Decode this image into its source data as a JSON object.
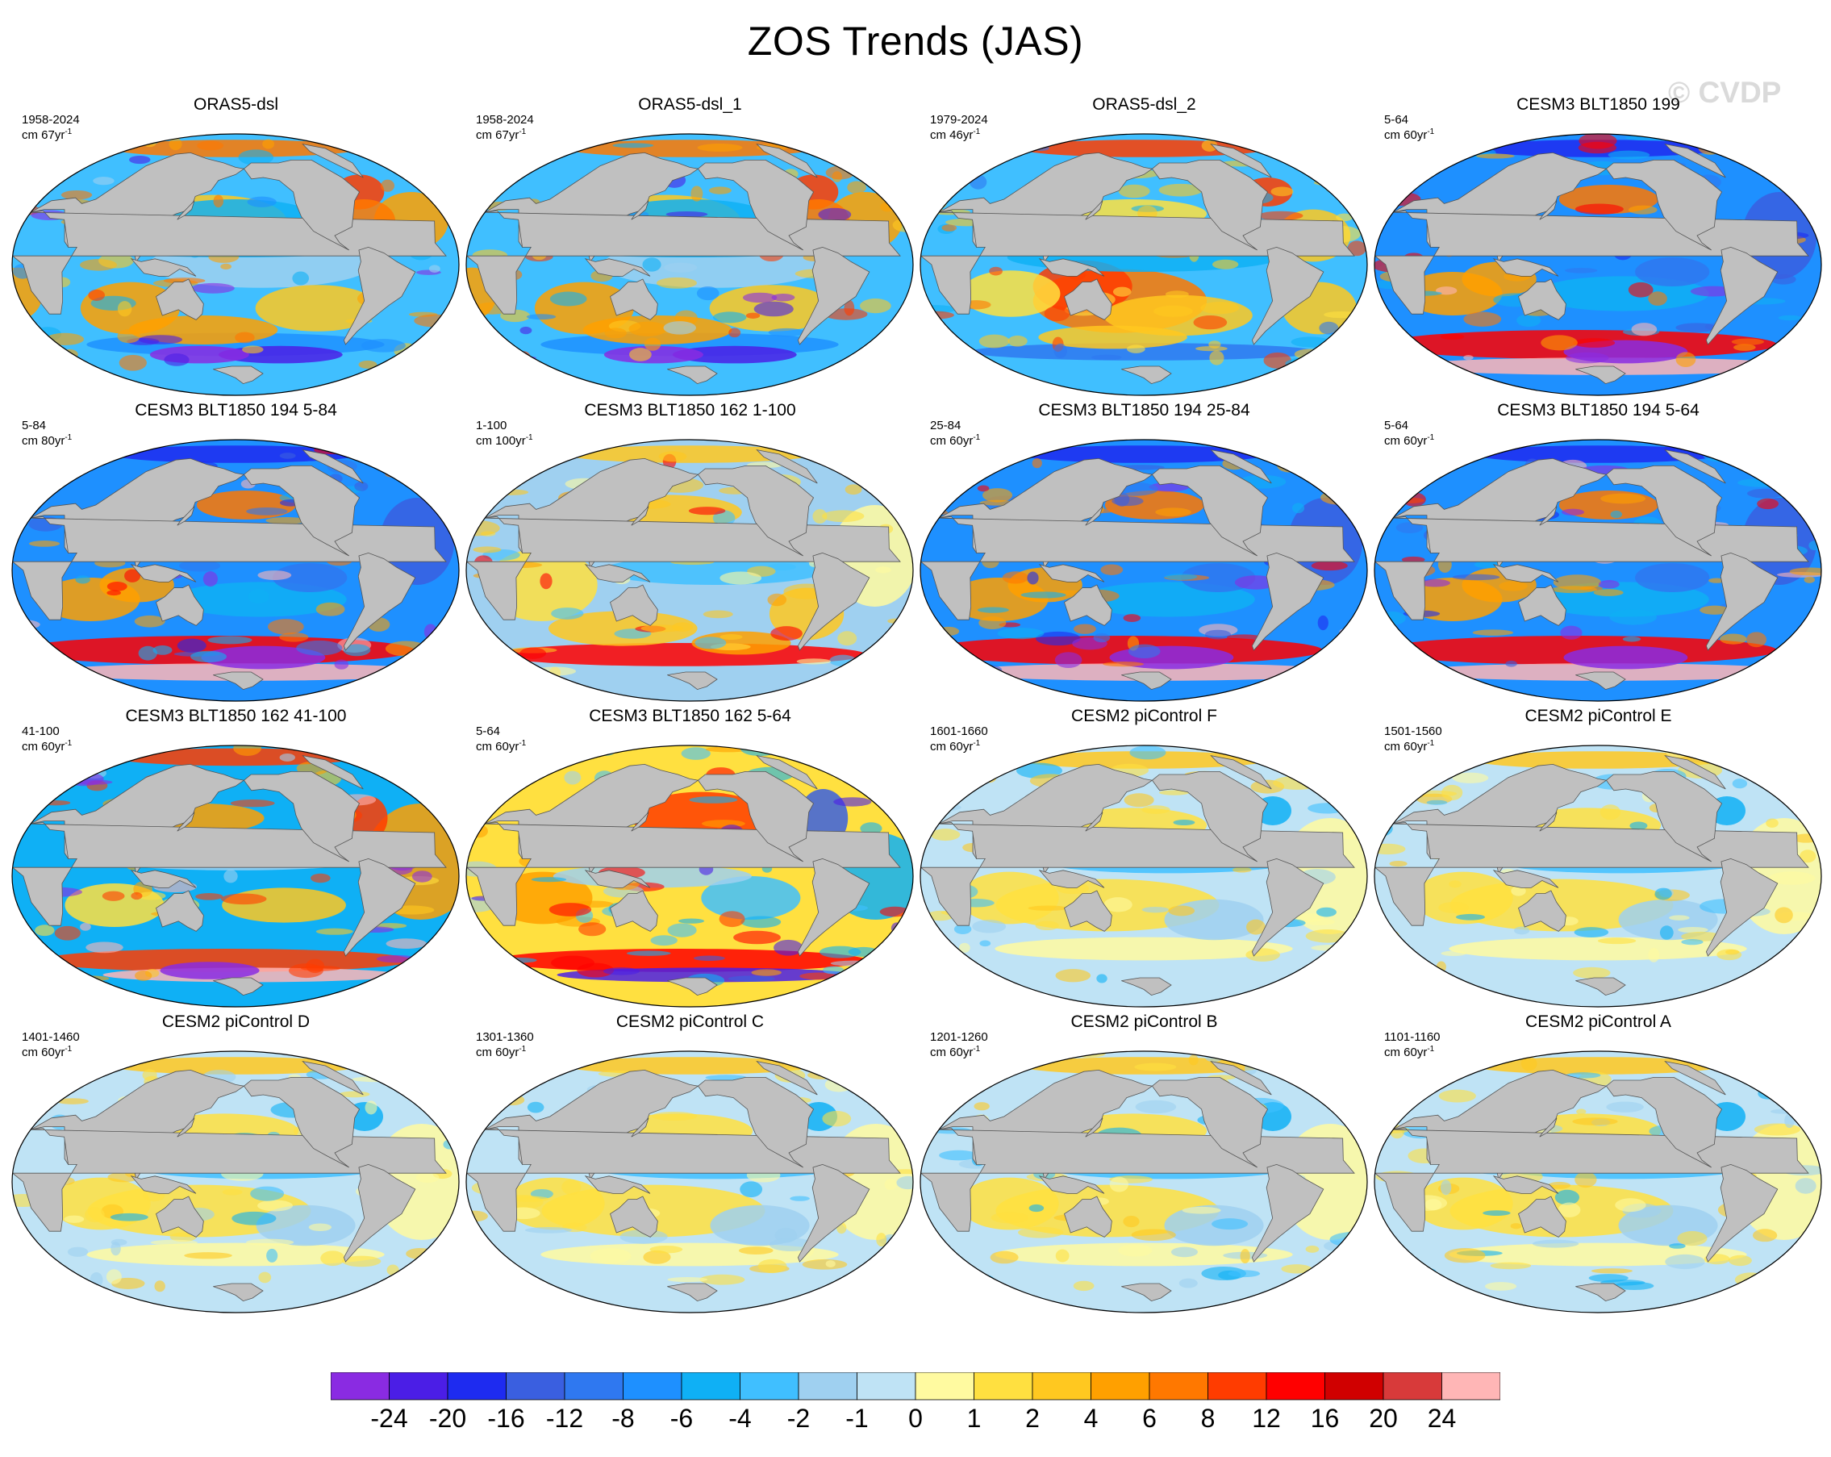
{
  "title": "ZOS Trends (JAS)",
  "watermark": "© CVDP",
  "panels": [
    {
      "title": "ORAS5-dsl",
      "years": "1958-2024",
      "units": "cm 67yr",
      "exp": "-1",
      "pattern": "obs1"
    },
    {
      "title": "ORAS5-dsl_1",
      "years": "1958-2024",
      "units": "cm 67yr",
      "exp": "-1",
      "pattern": "obs1"
    },
    {
      "title": "ORAS5-dsl_2",
      "years": "1979-2024",
      "units": "cm 46yr",
      "exp": "-1",
      "pattern": "obs2"
    },
    {
      "title": "CESM3 BLT1850 199",
      "years": "5-64",
      "units": "cm 60yr",
      "exp": "-1",
      "pattern": "cesm3cool"
    },
    {
      "title": "CESM3 BLT1850 194 5-84",
      "years": "5-84",
      "units": "cm 80yr",
      "exp": "-1",
      "pattern": "cesm3cool"
    },
    {
      "title": "CESM3 BLT1850 162 1-100",
      "years": "1-100",
      "units": "cm 100yr",
      "exp": "-1",
      "pattern": "cesm3mixed"
    },
    {
      "title": "CESM3 BLT1850 194 25-84",
      "years": "25-84",
      "units": "cm 60yr",
      "exp": "-1",
      "pattern": "cesm3cool"
    },
    {
      "title": "CESM3 BLT1850 194 5-64",
      "years": "5-64",
      "units": "cm 60yr",
      "exp": "-1",
      "pattern": "cesm3cool"
    },
    {
      "title": "CESM3 BLT1850 162 41-100",
      "years": "41-100",
      "units": "cm 60yr",
      "exp": "-1",
      "pattern": "cesm3warmatl"
    },
    {
      "title": "CESM3 BLT1850 162 5-64",
      "years": "5-64",
      "units": "cm 60yr",
      "exp": "-1",
      "pattern": "cesm3warmpac"
    },
    {
      "title": "CESM2 piControl F",
      "years": "1601-1660",
      "units": "cm 60yr",
      "exp": "-1",
      "pattern": "weak"
    },
    {
      "title": "CESM2 piControl E",
      "years": "1501-1560",
      "units": "cm 60yr",
      "exp": "-1",
      "pattern": "weak"
    },
    {
      "title": "CESM2 piControl D",
      "years": "1401-1460",
      "units": "cm 60yr",
      "exp": "-1",
      "pattern": "weak"
    },
    {
      "title": "CESM2 piControl C",
      "years": "1301-1360",
      "units": "cm 60yr",
      "exp": "-1",
      "pattern": "weak"
    },
    {
      "title": "CESM2 piControl B",
      "years": "1201-1260",
      "units": "cm 60yr",
      "exp": "-1",
      "pattern": "weak"
    },
    {
      "title": "CESM2 piControl A",
      "years": "1101-1160",
      "units": "cm 60yr",
      "exp": "-1",
      "pattern": "weak"
    }
  ],
  "colorbar": {
    "labels": [
      "-24",
      "-20",
      "-16",
      "-12",
      "-8",
      "-6",
      "-4",
      "-2",
      "-1",
      "0",
      "1",
      "2",
      "4",
      "6",
      "8",
      "12",
      "16",
      "20",
      "24"
    ],
    "colors": [
      "#8a2be2",
      "#4b1ee6",
      "#1e2bf0",
      "#3a5fe0",
      "#2f78f0",
      "#1e90ff",
      "#0fb0f5",
      "#40bfff",
      "#9fd0f0",
      "#bfe3f5",
      "#fffaa0",
      "#ffe040",
      "#ffc820",
      "#ffa000",
      "#ff7800",
      "#ff3c00",
      "#ff0000",
      "#d00000",
      "#d83a3a",
      "#ffb6b6"
    ]
  }
}
